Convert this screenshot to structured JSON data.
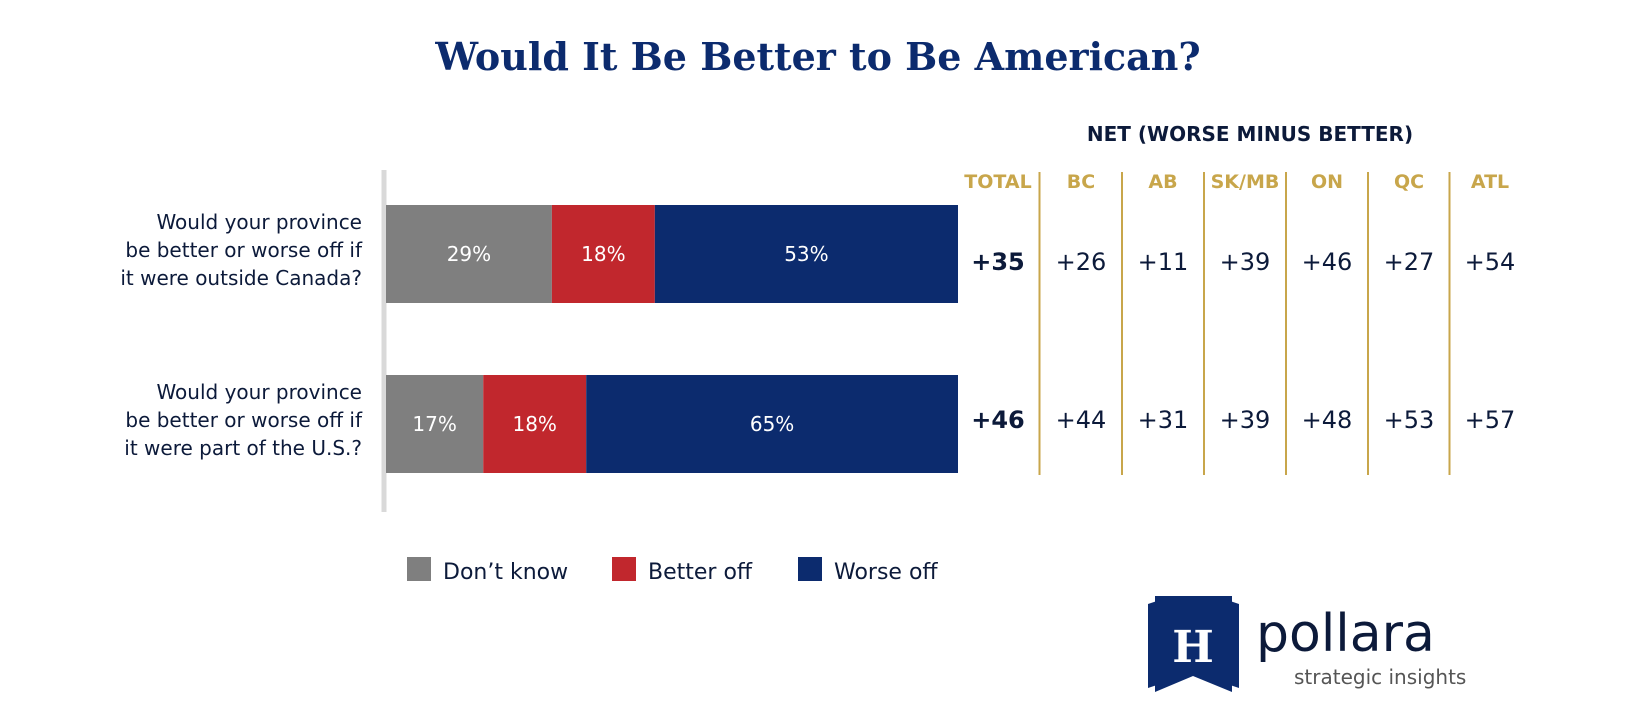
{
  "chart_data": {
    "type": "bar",
    "stacked": true,
    "orientation": "horizontal",
    "title": "Would It Be Better to Be American?",
    "categories": [
      [
        "Would your province",
        "be better or worse off if",
        "it were outside Canada?"
      ],
      [
        "Would your province",
        "be better or worse off if",
        "it were part of the U.S.?"
      ]
    ],
    "series": [
      {
        "name": "Don’t know",
        "color": "#7f7f7f",
        "values": [
          29,
          17
        ]
      },
      {
        "name": "Better off",
        "color": "#c1272d",
        "values": [
          18,
          18
        ]
      },
      {
        "name": "Worse off",
        "color": "#0c2b6e",
        "values": [
          53,
          65
        ]
      }
    ],
    "value_suffix": "%",
    "xlim": [
      0,
      100
    ],
    "legend_position": "bottom",
    "net_table": {
      "heading": "NET (WORSE MINUS BETTER)",
      "columns": [
        "TOTAL",
        "BC",
        "AB",
        "SK/MB",
        "ON",
        "QC",
        "ATL"
      ],
      "rows": [
        [
          "+35",
          "+26",
          "+11",
          "+39",
          "+46",
          "+27",
          "+54"
        ],
        [
          "+46",
          "+44",
          "+31",
          "+39",
          "+48",
          "+53",
          "+57"
        ]
      ],
      "header_color": "#c8a64b"
    }
  },
  "logo": {
    "letter": "H",
    "name": "pollara",
    "tagline": "strategic insights",
    "color": "#0c2b6e"
  }
}
